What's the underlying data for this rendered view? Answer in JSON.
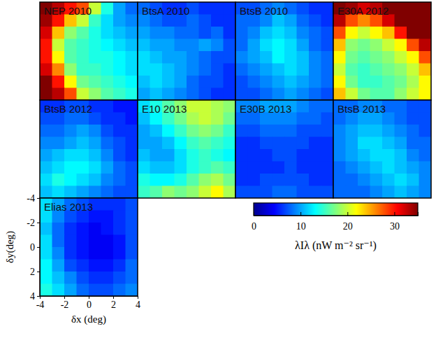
{
  "chart_data": {
    "type": "heatmap",
    "x_label": "δx (deg)",
    "y_label": "δy(deg)",
    "xlim": [
      -4,
      4
    ],
    "ylim": [
      -4,
      4
    ],
    "xticks": [
      -4,
      -2,
      0,
      2,
      4
    ],
    "yticks": [
      -4,
      -2,
      0,
      2,
      4
    ],
    "colorbar": {
      "label": "λIλ (nW m⁻² sr⁻¹)",
      "range": [
        0,
        35
      ],
      "ticks": [
        0,
        10,
        20,
        30
      ]
    },
    "panels": [
      {
        "title": "NEP 2010",
        "cells": [
          [
            35,
            33,
            30,
            28,
            20,
            14,
            10,
            8
          ],
          [
            34,
            30,
            24,
            20,
            15,
            12,
            10,
            9
          ],
          [
            32,
            24,
            18,
            16,
            14,
            12,
            11,
            10
          ],
          [
            30,
            20,
            16,
            15,
            14,
            13,
            12,
            11
          ],
          [
            30,
            22,
            16,
            15,
            14,
            14,
            13,
            12
          ],
          [
            32,
            26,
            18,
            15,
            15,
            14,
            13,
            12
          ],
          [
            35,
            30,
            22,
            17,
            16,
            15,
            14,
            13
          ],
          [
            35,
            33,
            28,
            20,
            18,
            16,
            15,
            14
          ]
        ]
      },
      {
        "title": "BtsA 2010",
        "cells": [
          [
            8,
            7,
            6,
            6,
            7,
            6,
            6,
            6
          ],
          [
            9,
            8,
            7,
            7,
            8,
            7,
            6,
            6
          ],
          [
            10,
            9,
            9,
            8,
            8,
            7,
            8,
            6
          ],
          [
            11,
            10,
            10,
            9,
            9,
            10,
            9,
            7
          ],
          [
            12,
            11,
            10,
            10,
            9,
            8,
            7,
            7
          ],
          [
            12,
            12,
            11,
            10,
            9,
            8,
            7,
            6
          ],
          [
            11,
            12,
            11,
            10,
            8,
            7,
            7,
            6
          ],
          [
            10,
            11,
            10,
            9,
            8,
            7,
            6,
            6
          ]
        ]
      },
      {
        "title": "BtsB 2010",
        "cells": [
          [
            7,
            7,
            8,
            9,
            8,
            7,
            6,
            6
          ],
          [
            8,
            8,
            9,
            11,
            10,
            8,
            7,
            6
          ],
          [
            8,
            9,
            11,
            12,
            11,
            9,
            8,
            7
          ],
          [
            8,
            10,
            12,
            13,
            12,
            10,
            8,
            7
          ],
          [
            9,
            10,
            11,
            13,
            12,
            11,
            9,
            8
          ],
          [
            8,
            9,
            10,
            11,
            12,
            11,
            9,
            8
          ],
          [
            7,
            8,
            9,
            10,
            11,
            10,
            9,
            8
          ],
          [
            7,
            7,
            8,
            9,
            10,
            9,
            8,
            7
          ]
        ]
      },
      {
        "title": "E30A 2012",
        "cells": [
          [
            35,
            34,
            32,
            33,
            35,
            35,
            35,
            35
          ],
          [
            33,
            28,
            26,
            28,
            32,
            35,
            35,
            35
          ],
          [
            28,
            22,
            20,
            22,
            24,
            30,
            35,
            35
          ],
          [
            24,
            18,
            17,
            18,
            20,
            22,
            28,
            33
          ],
          [
            22,
            17,
            16,
            17,
            18,
            20,
            22,
            28
          ],
          [
            20,
            16,
            15,
            16,
            17,
            18,
            20,
            24
          ],
          [
            22,
            17,
            15,
            15,
            16,
            17,
            19,
            22
          ],
          [
            24,
            20,
            17,
            16,
            16,
            18,
            20,
            22
          ]
        ]
      },
      {
        "title": "BtsB 2012",
        "cells": [
          [
            6,
            6,
            7,
            7,
            6,
            6,
            5,
            5
          ],
          [
            7,
            7,
            8,
            8,
            7,
            6,
            6,
            5
          ],
          [
            8,
            8,
            9,
            10,
            9,
            7,
            6,
            6
          ],
          [
            9,
            9,
            10,
            11,
            10,
            8,
            7,
            6
          ],
          [
            10,
            11,
            12,
            12,
            11,
            9,
            7,
            6
          ],
          [
            11,
            12,
            13,
            13,
            12,
            10,
            8,
            7
          ],
          [
            12,
            14,
            13,
            12,
            11,
            9,
            8,
            7
          ],
          [
            11,
            12,
            11,
            10,
            9,
            8,
            7,
            7
          ]
        ]
      },
      {
        "title": "E10 2013",
        "cells": [
          [
            12,
            14,
            16,
            18,
            20,
            20,
            19,
            18
          ],
          [
            11,
            13,
            15,
            17,
            19,
            20,
            19,
            17
          ],
          [
            10,
            11,
            13,
            15,
            17,
            18,
            17,
            15
          ],
          [
            10,
            10,
            11,
            13,
            15,
            16,
            15,
            14
          ],
          [
            11,
            10,
            10,
            12,
            14,
            15,
            14,
            13
          ],
          [
            12,
            11,
            11,
            12,
            14,
            15,
            16,
            15
          ],
          [
            14,
            13,
            13,
            14,
            16,
            18,
            19,
            17
          ],
          [
            15,
            16,
            18,
            17,
            18,
            20,
            22,
            19
          ]
        ]
      },
      {
        "title": "E30B 2013",
        "cells": [
          [
            9,
            9,
            10,
            10,
            10,
            9,
            8,
            8
          ],
          [
            8,
            8,
            9,
            9,
            9,
            8,
            8,
            7
          ],
          [
            7,
            7,
            8,
            8,
            8,
            7,
            7,
            7
          ],
          [
            6,
            6,
            7,
            7,
            7,
            7,
            6,
            6
          ],
          [
            6,
            6,
            6,
            7,
            7,
            6,
            6,
            6
          ],
          [
            6,
            6,
            6,
            6,
            7,
            6,
            6,
            6
          ],
          [
            6,
            6,
            7,
            7,
            7,
            7,
            6,
            6
          ],
          [
            7,
            7,
            7,
            8,
            8,
            7,
            7,
            7
          ]
        ]
      },
      {
        "title": "BtsB 2013",
        "cells": [
          [
            8,
            8,
            9,
            9,
            8,
            8,
            7,
            7
          ],
          [
            8,
            9,
            10,
            10,
            9,
            8,
            7,
            7
          ],
          [
            9,
            10,
            11,
            11,
            10,
            9,
            8,
            7
          ],
          [
            9,
            10,
            12,
            12,
            11,
            10,
            8,
            8
          ],
          [
            9,
            10,
            11,
            12,
            12,
            11,
            9,
            8
          ],
          [
            8,
            9,
            10,
            11,
            12,
            11,
            10,
            9
          ],
          [
            8,
            8,
            9,
            10,
            11,
            12,
            11,
            9
          ],
          [
            8,
            8,
            8,
            9,
            10,
            11,
            10,
            9
          ]
        ]
      },
      {
        "title": "Elias 2013",
        "cells": [
          [
            12,
            10,
            8,
            7,
            6,
            6,
            6,
            7
          ],
          [
            12,
            9,
            7,
            6,
            5,
            5,
            6,
            7
          ],
          [
            11,
            8,
            6,
            5,
            4,
            5,
            6,
            7
          ],
          [
            12,
            8,
            6,
            5,
            4,
            4,
            5,
            7
          ],
          [
            12,
            9,
            6,
            5,
            4,
            4,
            5,
            7
          ],
          [
            13,
            10,
            7,
            6,
            5,
            5,
            6,
            8
          ],
          [
            13,
            11,
            9,
            7,
            6,
            6,
            7,
            8
          ],
          [
            14,
            12,
            10,
            8,
            7,
            7,
            8,
            9
          ]
        ]
      }
    ]
  }
}
